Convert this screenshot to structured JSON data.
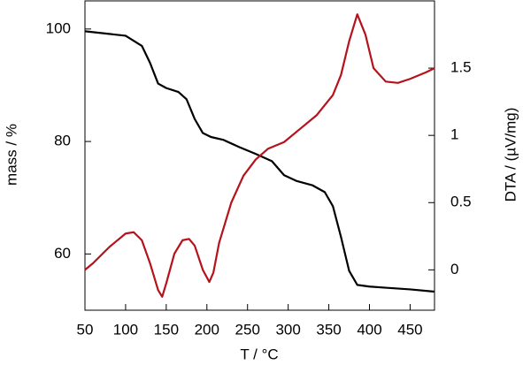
{
  "chart_data": {
    "type": "line",
    "x_label": "T / °C",
    "y_label": "mass / %",
    "y2_label": "DTA / (µV/mg)",
    "xlim": [
      50,
      480
    ],
    "xticks": [
      50,
      100,
      150,
      200,
      250,
      300,
      350,
      400,
      450
    ],
    "ylim": [
      50,
      105
    ],
    "yticks": [
      60,
      80,
      100
    ],
    "y2lim": [
      -0.3,
      2
    ],
    "y2ticks": [
      0,
      0.5,
      1,
      1.5
    ],
    "series": [
      {
        "color": "#000000",
        "axis": "y",
        "x": [
          50,
          100,
          120,
          130,
          140,
          150,
          165,
          175,
          185,
          195,
          205,
          220,
          240,
          260,
          280,
          295,
          310,
          330,
          345,
          355,
          365,
          375,
          385,
          400,
          420,
          450,
          480
        ],
        "values": [
          99.6,
          98.8,
          97,
          94,
          90.3,
          89.5,
          88.8,
          87.5,
          84,
          81.5,
          80.8,
          80.3,
          79,
          77.8,
          76.5,
          74,
          73,
          72.2,
          71,
          68.5,
          63,
          57,
          54.5,
          54.2,
          54,
          53.7,
          53.3
        ]
      },
      {
        "color": "#b5121b",
        "axis": "y2",
        "x": [
          50,
          60,
          80,
          100,
          110,
          120,
          130,
          140,
          145,
          150,
          160,
          170,
          178,
          185,
          195,
          203,
          208,
          215,
          230,
          245,
          260,
          275,
          295,
          315,
          335,
          355,
          365,
          375,
          385,
          395,
          405,
          420,
          435,
          450,
          470,
          480
        ],
        "values": [
          0.0,
          0.05,
          0.17,
          0.27,
          0.28,
          0.22,
          0.05,
          -0.15,
          -0.2,
          -0.1,
          0.12,
          0.22,
          0.23,
          0.18,
          0.0,
          -0.09,
          -0.02,
          0.2,
          0.5,
          0.7,
          0.82,
          0.9,
          0.95,
          1.05,
          1.15,
          1.3,
          1.45,
          1.7,
          1.9,
          1.75,
          1.5,
          1.4,
          1.39,
          1.42,
          1.47,
          1.5
        ]
      }
    ]
  }
}
